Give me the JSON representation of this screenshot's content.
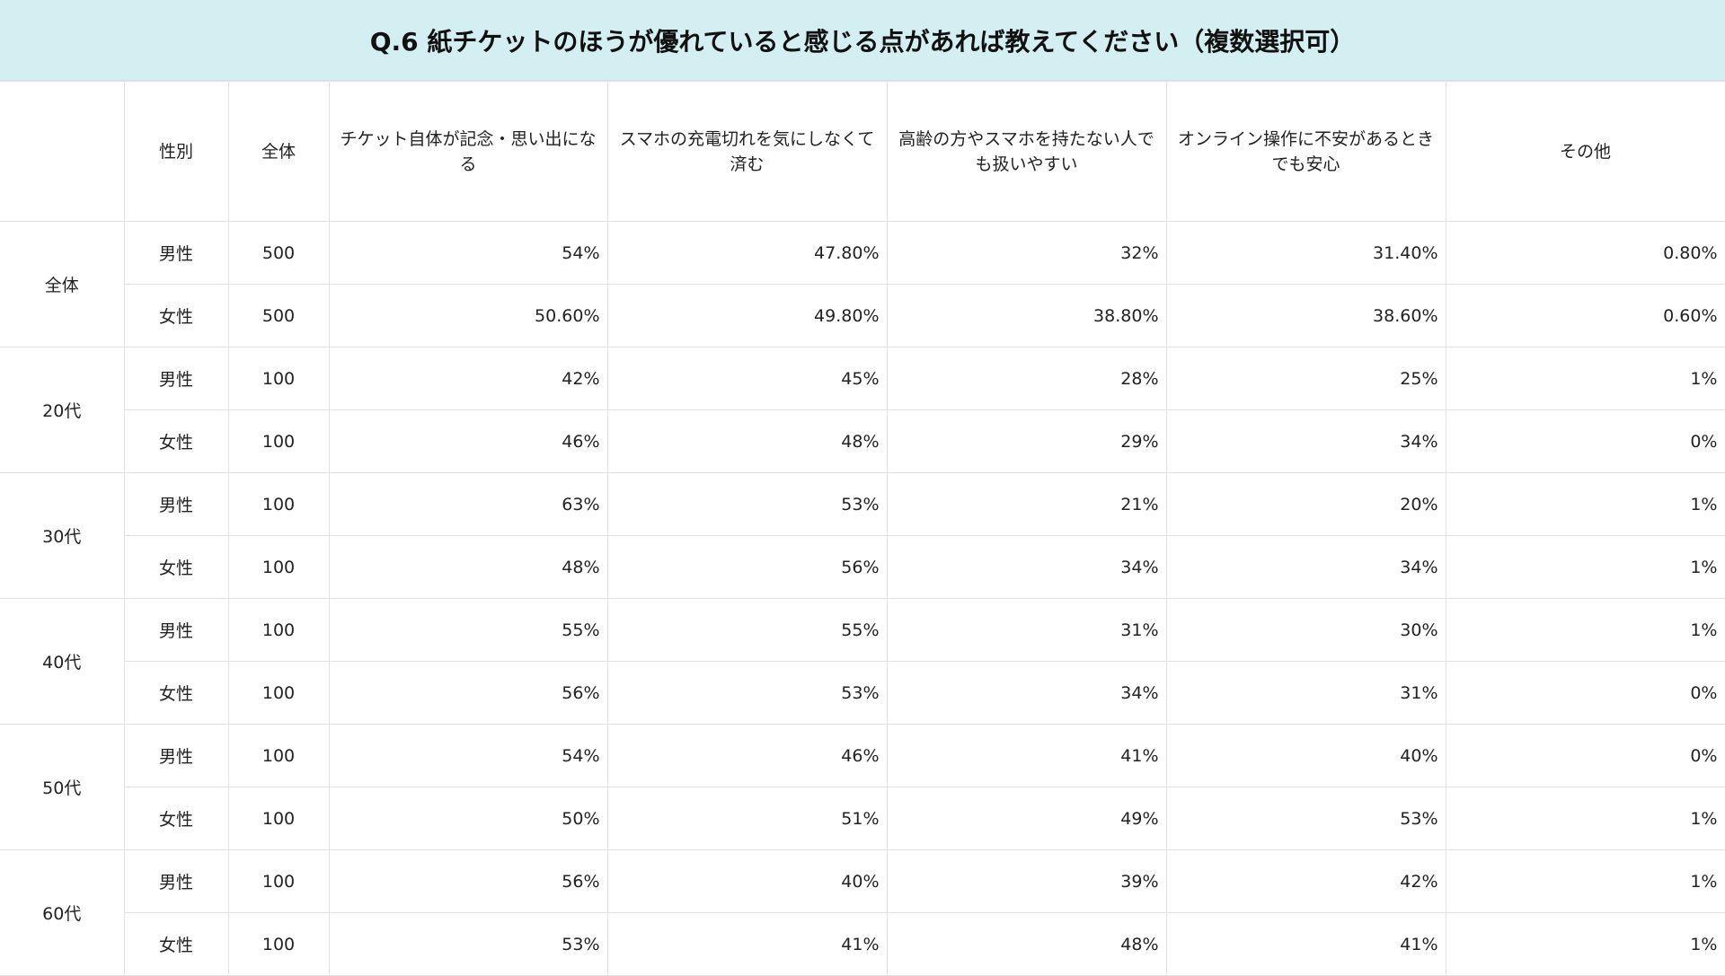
{
  "title": "Q.6 紙チケットのほうが優れていると感じる点があれば教えてください（複数選択可）",
  "colors": {
    "header_bg": "#d3eff1",
    "grid": "#e2e2e2"
  },
  "chart_data": {
    "type": "table",
    "title": "Q.6 紙チケットのほうが優れていると感じる点があれば教えてください（複数選択可）",
    "columns": [
      "",
      "性別",
      "全体",
      "チケット自体が記念・思い出になる",
      "スマホの充電切れを気にしなくて済む",
      "高齢の方やスマホを持たない人でも扱いやすい",
      "オンライン操作に不安があるときでも安心",
      "その他"
    ],
    "groups": [
      {
        "label": "全体",
        "rows": [
          {
            "gender": "男性",
            "n": "500",
            "values": [
              "54%",
              "47.80%",
              "32%",
              "31.40%",
              "0.80%"
            ]
          },
          {
            "gender": "女性",
            "n": "500",
            "values": [
              "50.60%",
              "49.80%",
              "38.80%",
              "38.60%",
              "0.60%"
            ]
          }
        ]
      },
      {
        "label": "20代",
        "rows": [
          {
            "gender": "男性",
            "n": "100",
            "values": [
              "42%",
              "45%",
              "28%",
              "25%",
              "1%"
            ]
          },
          {
            "gender": "女性",
            "n": "100",
            "values": [
              "46%",
              "48%",
              "29%",
              "34%",
              "0%"
            ]
          }
        ]
      },
      {
        "label": "30代",
        "rows": [
          {
            "gender": "男性",
            "n": "100",
            "values": [
              "63%",
              "53%",
              "21%",
              "20%",
              "1%"
            ]
          },
          {
            "gender": "女性",
            "n": "100",
            "values": [
              "48%",
              "56%",
              "34%",
              "34%",
              "1%"
            ]
          }
        ]
      },
      {
        "label": "40代",
        "rows": [
          {
            "gender": "男性",
            "n": "100",
            "values": [
              "55%",
              "55%",
              "31%",
              "30%",
              "1%"
            ]
          },
          {
            "gender": "女性",
            "n": "100",
            "values": [
              "56%",
              "53%",
              "34%",
              "31%",
              "0%"
            ]
          }
        ]
      },
      {
        "label": "50代",
        "rows": [
          {
            "gender": "男性",
            "n": "100",
            "values": [
              "54%",
              "46%",
              "41%",
              "40%",
              "0%"
            ]
          },
          {
            "gender": "女性",
            "n": "100",
            "values": [
              "50%",
              "51%",
              "49%",
              "53%",
              "1%"
            ]
          }
        ]
      },
      {
        "label": "60代",
        "rows": [
          {
            "gender": "男性",
            "n": "100",
            "values": [
              "56%",
              "40%",
              "39%",
              "42%",
              "1%"
            ]
          },
          {
            "gender": "女性",
            "n": "100",
            "values": [
              "53%",
              "41%",
              "48%",
              "41%",
              "1%"
            ]
          }
        ]
      }
    ]
  }
}
